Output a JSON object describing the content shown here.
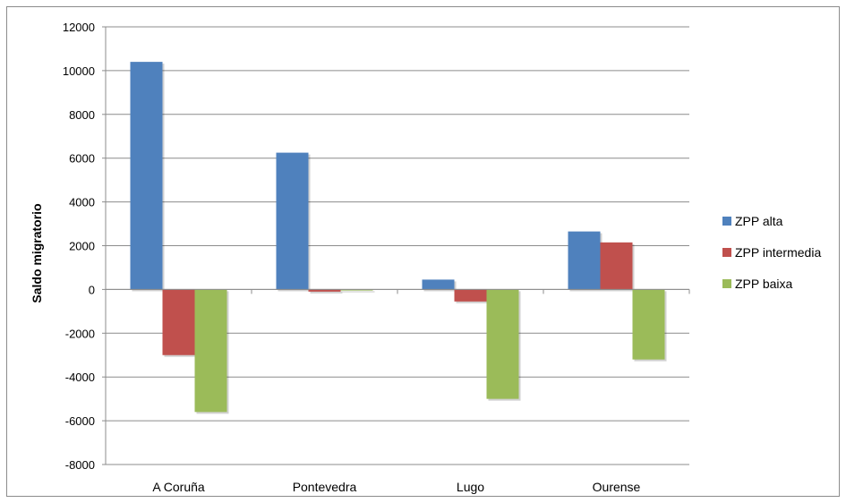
{
  "chart_data": {
    "type": "bar",
    "title": "",
    "xlabel": "",
    "ylabel": "Saldo migratorio",
    "ylim": [
      -8000,
      12000
    ],
    "ytick_step": 2000,
    "yticks": [
      "12000",
      "10000",
      "8000",
      "6000",
      "4000",
      "2000",
      "0",
      "-2000",
      "-4000",
      "-6000",
      "-8000"
    ],
    "grid": true,
    "legend_position": "right",
    "categories": [
      "A Coruña",
      "Pontevedra",
      "Lugo",
      "Ourense"
    ],
    "series": [
      {
        "name": "ZPP alta",
        "color": "#4f81bd",
        "values": [
          10400,
          6250,
          450,
          2650
        ]
      },
      {
        "name": "ZPP intermedia",
        "color": "#c0504d",
        "values": [
          -3000,
          -100,
          -550,
          2150
        ]
      },
      {
        "name": "ZPP baixa",
        "color": "#9bbb59",
        "values": [
          -5600,
          -50,
          -5000,
          -3200
        ]
      }
    ]
  }
}
